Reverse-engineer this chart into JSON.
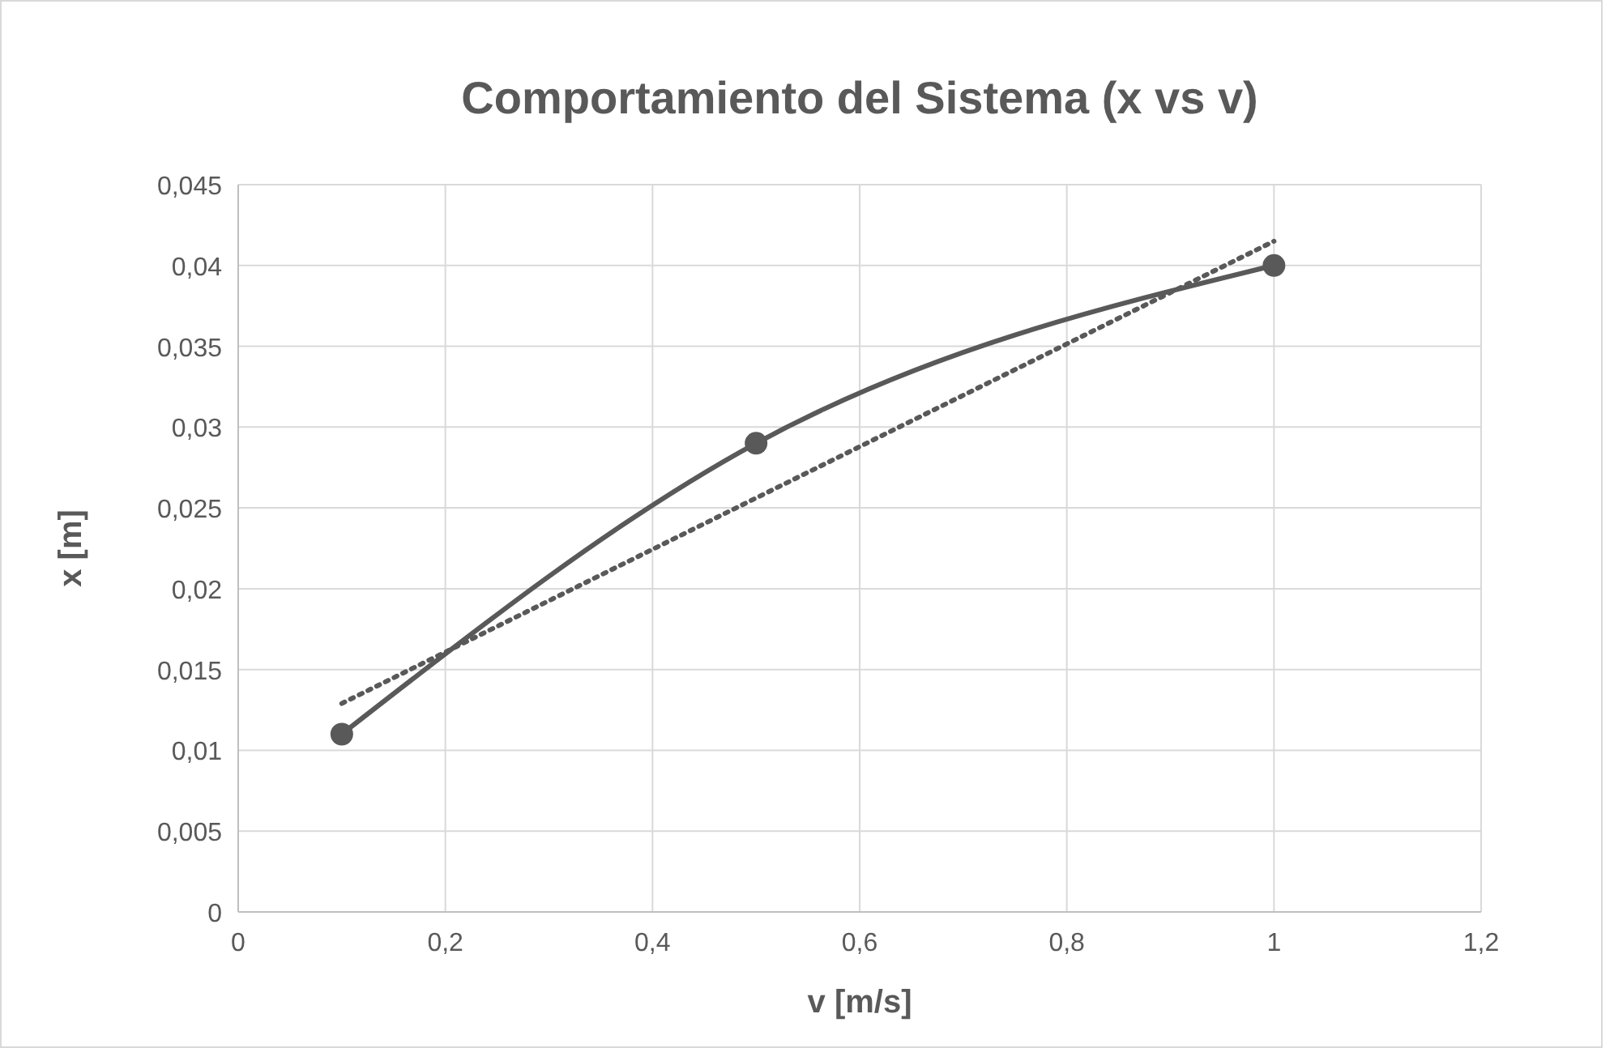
{
  "chart_data": {
    "type": "line",
    "title": "Comportamiento del Sistema (x vs v)",
    "xlabel": "v [m/s]",
    "ylabel": "x [m]",
    "xlim": [
      0,
      1.2
    ],
    "xticks": [
      {
        "value": 0,
        "label": "0"
      },
      {
        "value": 0.2,
        "label": "0,2"
      },
      {
        "value": 0.4,
        "label": "0,4"
      },
      {
        "value": 0.6,
        "label": "0,6"
      },
      {
        "value": 0.8,
        "label": "0,8"
      },
      {
        "value": 1,
        "label": "1"
      },
      {
        "value": 1.2,
        "label": "1,2"
      }
    ],
    "ylim": [
      0,
      0.045
    ],
    "yticks": [
      {
        "value": 0,
        "label": "0"
      },
      {
        "value": 0.005,
        "label": "0,005"
      },
      {
        "value": 0.01,
        "label": "0,01"
      },
      {
        "value": 0.015,
        "label": "0,015"
      },
      {
        "value": 0.02,
        "label": "0,02"
      },
      {
        "value": 0.025,
        "label": "0,025"
      },
      {
        "value": 0.03,
        "label": "0,03"
      },
      {
        "value": 0.035,
        "label": "0,035"
      },
      {
        "value": 0.04,
        "label": "0,04"
      },
      {
        "value": 0.045,
        "label": "0,045"
      }
    ],
    "grid": true,
    "series": [
      {
        "type": "line",
        "color": "#595959",
        "x": [
          0.1,
          0.5,
          1
        ],
        "values": [
          0.011,
          0.029,
          0.04
        ],
        "marker": "circle",
        "line_style": "solid"
      },
      {
        "type": "line",
        "color": "#595959",
        "x": [
          0.1,
          1
        ],
        "values": [
          0.0129,
          0.0415
        ],
        "marker": "none",
        "line_style": "dotted"
      }
    ]
  }
}
